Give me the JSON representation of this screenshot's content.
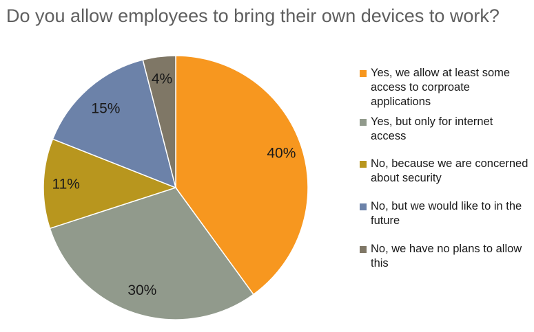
{
  "chart_data": {
    "type": "pie",
    "title": "Do you allow employees to bring their own devices to work?",
    "slices": [
      {
        "label": "Yes, we allow at least some access to corproate applications",
        "value": 40,
        "display": "40%",
        "color": "#f7971f"
      },
      {
        "label": "Yes, but only for internet access",
        "value": 30,
        "display": "30%",
        "color": "#919a8c"
      },
      {
        "label": "No, because we are concerned about security",
        "value": 11,
        "display": "11%",
        "color": "#b8961e"
      },
      {
        "label": "No, but we would like to in the future",
        "value": 15,
        "display": "15%",
        "color": "#6c82a9"
      },
      {
        "label": "No, we have no plans to allow this",
        "value": 4,
        "display": "4%",
        "color": "#7f7766"
      }
    ],
    "legend_position": "right"
  }
}
